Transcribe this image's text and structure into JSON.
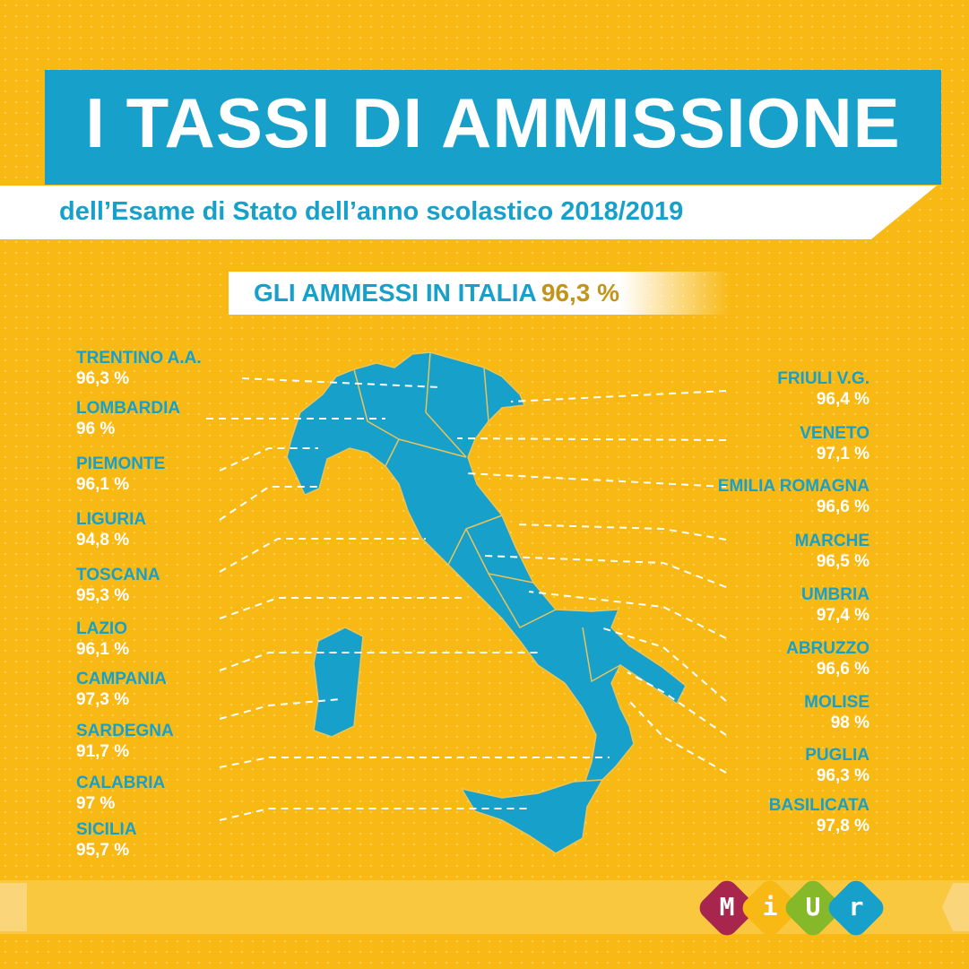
{
  "header": {
    "title": "I TASSI DI AMMISSIONE",
    "subtitle": "dell’Esame di Stato dell’anno scolastico 2018/2019"
  },
  "national": {
    "label": "GLI AMMESSI IN ITALIA",
    "value": "96,3 %"
  },
  "regions_left": [
    {
      "name": "TRENTINO A.A.",
      "value": "96,3 %"
    },
    {
      "name": "LOMBARDIA",
      "value": "96 %"
    },
    {
      "name": "PIEMONTE",
      "value": "96,1 %"
    },
    {
      "name": "LIGURIA",
      "value": "94,8 %"
    },
    {
      "name": "TOSCANA",
      "value": "95,3 %"
    },
    {
      "name": "LAZIO",
      "value": "96,1 %"
    },
    {
      "name": "CAMPANIA",
      "value": "97,3 %"
    },
    {
      "name": "SARDEGNA",
      "value": "91,7 %"
    },
    {
      "name": "CALABRIA",
      "value": "97 %"
    },
    {
      "name": "SICILIA",
      "value": "95,7  %"
    }
  ],
  "regions_right": [
    {
      "name": "FRIULI V.G.",
      "value": "96,4 %"
    },
    {
      "name": "VENETO",
      "value": "97,1 %"
    },
    {
      "name": "EMILIA ROMAGNA",
      "value": "96,6 %"
    },
    {
      "name": "MARCHE",
      "value": "96,5 %"
    },
    {
      "name": "UMBRIA",
      "value": "97,4 %"
    },
    {
      "name": "ABRUZZO",
      "value": "96,6 %"
    },
    {
      "name": "MOLISE",
      "value": "98 %"
    },
    {
      "name": "PUGLIA",
      "value": "96,3 %"
    },
    {
      "name": "BASILICATA",
      "value": "97,8 %"
    }
  ],
  "logo": {
    "letters": [
      "M",
      "i",
      "U",
      "r"
    ],
    "colors": [
      "#A8264E",
      "#F8B914",
      "#86B92A",
      "#17A0CA"
    ]
  },
  "colors": {
    "background": "#F8B914",
    "accent": "#17A0CA",
    "highlight": "#C4931A"
  }
}
